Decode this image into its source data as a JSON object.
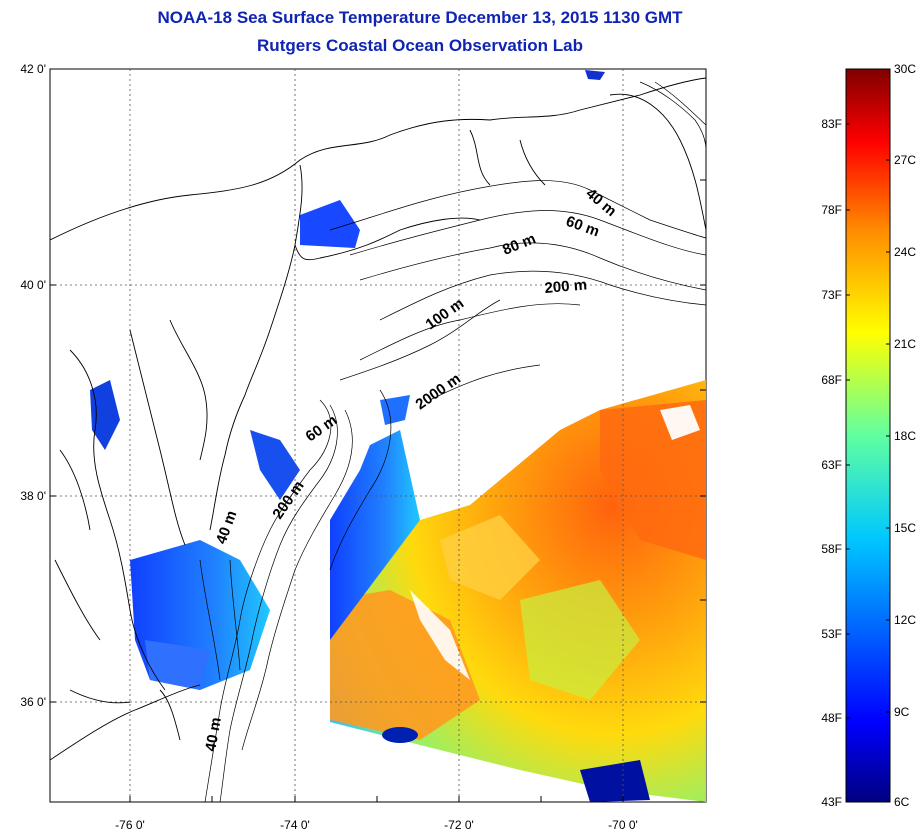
{
  "header": {
    "title_line1": "NOAA-18 Sea Surface Temperature December 13, 2015 1130 GMT",
    "title_line2": "Rutgers Coastal Ocean Observation Lab"
  },
  "axes": {
    "lat_labels": [
      "42 0'",
      "40 0'",
      "38 0'",
      "36 0'"
    ],
    "lon_labels": [
      "-76 0'",
      "-74 0'",
      "-72 0'",
      "-70 0'"
    ]
  },
  "contours": {
    "labels": [
      "40 m",
      "60 m",
      "80 m",
      "200 m",
      "100 m",
      "2000 m",
      "60 m",
      "200 m",
      "40 m",
      "40 m"
    ]
  },
  "colorbar": {
    "celsius_labels": [
      "30C",
      "27C",
      "24C",
      "21C",
      "18C",
      "15C",
      "12C",
      "9C",
      "6C"
    ],
    "fahrenheit_labels": [
      "83F",
      "78F",
      "73F",
      "68F",
      "63F",
      "58F",
      "53F",
      "48F",
      "43F"
    ],
    "colors": [
      "#000080",
      "#0000ff",
      "#0080ff",
      "#00ffff",
      "#80ff80",
      "#ffff00",
      "#ff8000",
      "#ff0000",
      "#800000"
    ]
  }
}
